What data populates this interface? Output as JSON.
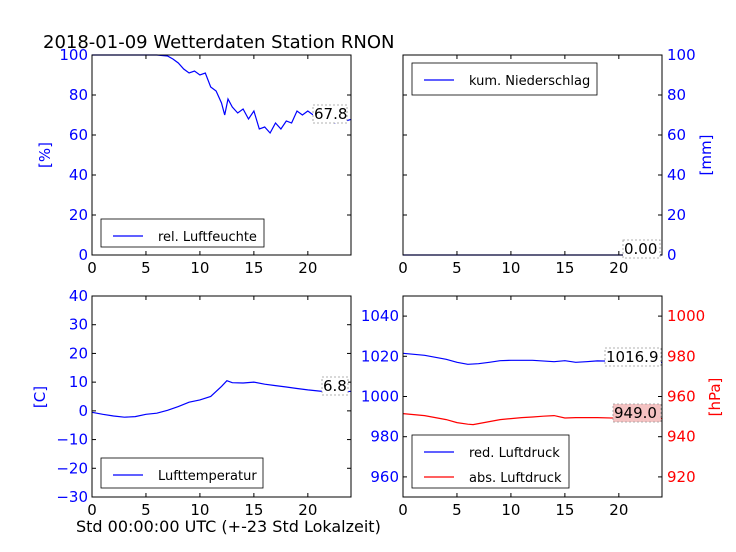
{
  "title": "2018-01-09 Wetterdaten Station RNON",
  "footer_label": "Std 00:00:00 UTC (+-23 Std Lokalzeit)",
  "colors": {
    "blue": "#0000ff",
    "red": "#ff0000",
    "axis": "#000000"
  },
  "chart_data": [
    {
      "id": "humidity",
      "type": "line",
      "ylabel": "[%]",
      "xlim": [
        0,
        24
      ],
      "ylim": [
        0,
        100
      ],
      "xticks": [
        "0",
        "5",
        "10",
        "15",
        "20"
      ],
      "yticks": [
        "0",
        "20",
        "40",
        "60",
        "80",
        "100"
      ],
      "legend": {
        "entries": [
          "rel. Luftfeuchte"
        ],
        "placement": "lower-left"
      },
      "annotation": "67.8",
      "series": [
        {
          "name": "rel. Luftfeuchte",
          "color": "#0000ff",
          "x": [
            0,
            2,
            4,
            6,
            7,
            7.5,
            8,
            8.5,
            9,
            9.5,
            10,
            10.5,
            11,
            11.5,
            12,
            12.3,
            12.6,
            13,
            13.5,
            14,
            14.5,
            15,
            15.5,
            16,
            16.5,
            17,
            17.5,
            18,
            18.5,
            19,
            19.5,
            20,
            20.5,
            21,
            21.5,
            22,
            22.5,
            23,
            23.5,
            24
          ],
          "y": [
            100,
            100,
            100,
            100,
            99.5,
            98,
            96,
            93,
            91,
            92,
            90,
            91,
            84,
            82,
            76,
            70,
            78,
            74,
            71,
            73,
            68,
            72,
            63,
            64,
            61,
            66,
            63,
            67,
            66,
            72,
            70,
            72,
            70,
            71,
            69,
            68,
            66,
            69,
            67,
            67.8
          ]
        }
      ]
    },
    {
      "id": "precip",
      "type": "line",
      "ylabel": "[mm]",
      "xlim": [
        0,
        24
      ],
      "ylim": [
        0,
        100
      ],
      "xticks": [
        "0",
        "5",
        "10",
        "15",
        "20"
      ],
      "yticks": [
        "0",
        "20",
        "40",
        "60",
        "80",
        "100"
      ],
      "legend": {
        "entries": [
          "kum. Niederschlag"
        ],
        "placement": "upper-left"
      },
      "annotation": "0.00",
      "series": [
        {
          "name": "kum. Niederschlag",
          "color": "#0000ff",
          "x": [
            0,
            24
          ],
          "y": [
            0,
            0
          ]
        }
      ]
    },
    {
      "id": "temperature",
      "type": "line",
      "ylabel": "[C]",
      "xlim": [
        0,
        24
      ],
      "ylim": [
        -30,
        40
      ],
      "xticks": [
        "0",
        "5",
        "10",
        "15",
        "20"
      ],
      "yticks": [
        "−30",
        "−20",
        "−10",
        "0",
        "10",
        "20",
        "30",
        "40"
      ],
      "legend": {
        "entries": [
          "Lufttemperatur"
        ],
        "placement": "lower-left"
      },
      "annotation": "6.8",
      "series": [
        {
          "name": "Lufttemperatur",
          "color": "#0000ff",
          "x": [
            0,
            1,
            2,
            3,
            4,
            5,
            6,
            7,
            8,
            9,
            10,
            11,
            12,
            12.5,
            13,
            14,
            15,
            16,
            17,
            18,
            19,
            20,
            21,
            22,
            23,
            24
          ],
          "y": [
            -0.5,
            -1.2,
            -1.8,
            -2.2,
            -2,
            -1.2,
            -0.8,
            0.2,
            1.5,
            3,
            3.8,
            5,
            8.5,
            10.5,
            9.8,
            9.7,
            10,
            9.3,
            8.8,
            8.3,
            7.8,
            7.3,
            6.9,
            6.5,
            6.5,
            6.8
          ]
        }
      ]
    },
    {
      "id": "pressure",
      "type": "line",
      "ylim_left": [
        950,
        1050
      ],
      "ylim_right": [
        910,
        1010
      ],
      "ylabel_right": "[hPa]",
      "xlim": [
        0,
        24
      ],
      "xticks": [
        "0",
        "5",
        "10",
        "15",
        "20"
      ],
      "yticks_left": [
        "960",
        "980",
        "1000",
        "1020",
        "1040"
      ],
      "yticks_right": [
        "920",
        "940",
        "960",
        "980",
        "1000"
      ],
      "legend": {
        "entries": [
          "red. Luftdruck",
          "abs. Luftdruck"
        ],
        "placement": "lower-left"
      },
      "annotations": [
        "1016.9",
        "949.0"
      ],
      "series": [
        {
          "name": "red. Luftdruck",
          "color": "#0000ff",
          "axis": "left",
          "x": [
            0,
            2,
            4,
            5,
            6,
            7,
            8,
            9,
            10,
            12,
            14,
            15,
            16,
            17,
            18,
            20,
            22,
            24
          ],
          "y": [
            1021.5,
            1020.5,
            1018.5,
            1017,
            1016,
            1016.3,
            1017,
            1017.8,
            1018,
            1018,
            1017.3,
            1017.8,
            1017,
            1017.3,
            1017.7,
            1017.5,
            1017.2,
            1016.9
          ]
        },
        {
          "name": "abs. Luftdruck",
          "color": "#ff0000",
          "axis": "right",
          "x": [
            0,
            2,
            4,
            5,
            6,
            6.5,
            7,
            8,
            9,
            10,
            11,
            12,
            13,
            14,
            15,
            16,
            18,
            20,
            22,
            24
          ],
          "y": [
            951.5,
            950.5,
            948.5,
            947,
            946.2,
            946,
            946.5,
            947.5,
            948.5,
            949,
            949.5,
            949.8,
            950.2,
            950.5,
            949.3,
            949.5,
            949.5,
            949.2,
            949.5,
            949.0
          ]
        }
      ]
    }
  ]
}
